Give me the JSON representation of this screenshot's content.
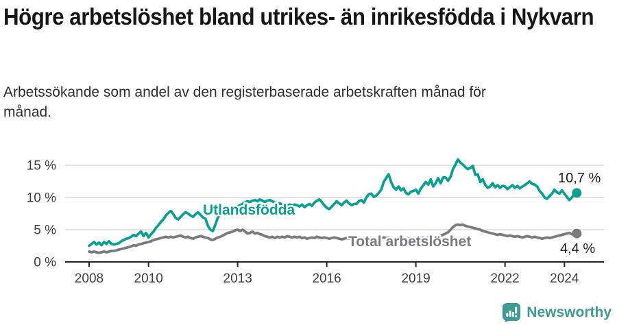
{
  "header": {
    "title": "Högre arbetslöshet bland utrikes- än inrikesfödda i Nykvarn",
    "subtitle": "Arbetssökande som andel av den registerbaserade arbetskraften månad för månad."
  },
  "chart_data": {
    "type": "line",
    "title": "Högre arbetslöshet bland utrikes- än inrikesfödda i Nykvarn",
    "subtitle": "Arbetssökande som andel av den registerbaserade arbetskraften månad för månad.",
    "x_start_year": 2008,
    "points_per_month": 1,
    "x_ticks": [
      2008,
      2010,
      2013,
      2016,
      2019,
      2022,
      2024
    ],
    "y_ticks": [
      0,
      5,
      10,
      15
    ],
    "y_tick_labels": [
      "0 %",
      "5 %",
      "10 %",
      "15 %"
    ],
    "ylim": [
      0,
      16.5
    ],
    "grid": "horizontal",
    "legend_position": "inline-labels",
    "colors": {
      "utlandsfodda": "#0aa092",
      "total": "#7b7a7f",
      "gridline": "#d9d9d9",
      "axis": "#222222",
      "end_label_text": "#1a1a1a"
    },
    "series": [
      {
        "name": "Utlandsfödda",
        "color": "#0aa092",
        "end_label": "10,7 %",
        "end_value": 10.7,
        "values": [
          2.5,
          2.8,
          3.1,
          2.7,
          3.0,
          2.6,
          3.1,
          2.8,
          3.2,
          2.8,
          2.7,
          2.8,
          2.9,
          3.2,
          3.4,
          3.6,
          3.7,
          3.9,
          4.2,
          4.0,
          4.4,
          4.7,
          4.0,
          4.5,
          3.8,
          4.3,
          4.7,
          5.3,
          5.7,
          6.2,
          6.6,
          7.2,
          7.6,
          7.9,
          7.4,
          6.8,
          6.6,
          7.0,
          7.4,
          7.7,
          7.5,
          7.2,
          7.0,
          7.4,
          7.7,
          7.3,
          6.9,
          6.7,
          5.6,
          5.0,
          4.8,
          5.8,
          6.9,
          7.3,
          7.5,
          7.7,
          7.9,
          8.1,
          8.2,
          8.4,
          8.6,
          8.8,
          9.0,
          9.2,
          9.4,
          9.3,
          9.5,
          9.6,
          9.4,
          9.7,
          9.5,
          9.3,
          9.5,
          9.6,
          9.4,
          9.2,
          9.0,
          9.1,
          8.9,
          9.0,
          8.8,
          8.9,
          8.7,
          8.9,
          8.8,
          8.6,
          8.9,
          8.5,
          8.8,
          9.0,
          8.7,
          9.2,
          9.5,
          9.7,
          9.3,
          8.8,
          8.4,
          8.2,
          8.6,
          9.0,
          9.4,
          9.1,
          8.8,
          9.2,
          9.5,
          9.1,
          8.8,
          9.0,
          9.0,
          9.4,
          9.6,
          9.2,
          10.0,
          10.5,
          10.6,
          10.1,
          10.3,
          10.7,
          11.2,
          12.4,
          13.0,
          13.6,
          12.4,
          11.6,
          11.2,
          11.7,
          11.1,
          11.4,
          10.7,
          10.5,
          10.9,
          11.0,
          11.2,
          10.6,
          11.4,
          11.9,
          12.4,
          12.0,
          12.8,
          11.7,
          12.2,
          13.0,
          12.2,
          13.1,
          13.1,
          12.6,
          13.2,
          14.4,
          15.1,
          15.9,
          15.4,
          15.1,
          14.7,
          14.4,
          14.6,
          14.9,
          13.5,
          13.6,
          12.4,
          12.8,
          12.0,
          11.5,
          11.7,
          12.2,
          11.6,
          11.9,
          11.5,
          11.8,
          11.7,
          11.3,
          11.6,
          11.9,
          11.5,
          11.8,
          11.4,
          11.7,
          11.9,
          12.2,
          12.5,
          12.1,
          12.0,
          11.7,
          11.0,
          10.6,
          10.0,
          9.8,
          10.2,
          10.6,
          11.2,
          10.8,
          10.6,
          11.1,
          10.6,
          10.1,
          9.6,
          10.0,
          10.5,
          10.7
        ]
      },
      {
        "name": "Total arbetslöshet",
        "color": "#7b7a7f",
        "end_label": "4,4 %",
        "end_value": 4.4,
        "values": [
          1.6,
          1.5,
          1.6,
          1.5,
          1.4,
          1.5,
          1.6,
          1.5,
          1.6,
          1.7,
          1.7,
          1.8,
          1.9,
          2.0,
          2.1,
          2.2,
          2.3,
          2.4,
          2.6,
          2.5,
          2.7,
          2.8,
          2.9,
          3.0,
          3.1,
          3.2,
          3.4,
          3.5,
          3.6,
          3.7,
          3.8,
          3.9,
          3.8,
          3.9,
          3.8,
          3.9,
          4.0,
          4.1,
          3.9,
          3.8,
          3.9,
          3.7,
          3.6,
          3.8,
          3.9,
          4.0,
          3.9,
          3.8,
          3.7,
          3.5,
          3.4,
          3.6,
          3.8,
          3.9,
          4.1,
          4.3,
          4.5,
          4.6,
          4.7,
          4.9,
          5.0,
          4.8,
          5.0,
          4.7,
          4.4,
          4.5,
          4.7,
          4.4,
          4.5,
          4.3,
          4.2,
          4.0,
          3.9,
          3.8,
          3.9,
          3.7,
          3.9,
          3.8,
          3.9,
          3.8,
          4.0,
          3.9,
          3.8,
          3.9,
          3.8,
          3.9,
          3.7,
          3.8,
          3.6,
          3.7,
          3.8,
          3.7,
          3.9,
          3.8,
          3.7,
          3.8,
          3.7,
          3.6,
          3.7,
          3.8,
          3.7,
          3.6,
          3.5,
          3.6,
          3.7,
          3.6,
          3.7,
          3.6,
          3.5,
          3.6,
          3.7,
          3.6,
          3.5,
          3.6,
          3.7,
          3.6,
          3.5,
          3.6,
          3.7,
          3.8,
          3.7,
          3.8,
          3.7,
          3.6,
          3.7,
          3.6,
          3.5,
          3.6,
          3.5,
          3.6,
          3.7,
          3.6,
          3.7,
          3.6,
          3.7,
          3.8,
          3.7,
          3.8,
          3.9,
          3.8,
          3.9,
          4.0,
          4.1,
          4.2,
          4.4,
          4.6,
          5.0,
          5.4,
          5.7,
          5.8,
          5.7,
          5.8,
          5.6,
          5.5,
          5.4,
          5.3,
          5.2,
          5.1,
          5.0,
          4.8,
          4.7,
          4.6,
          4.5,
          4.4,
          4.3,
          4.2,
          4.3,
          4.2,
          4.1,
          4.0,
          4.1,
          4.0,
          3.9,
          4.0,
          3.9,
          3.8,
          3.9,
          4.0,
          3.9,
          3.8,
          3.9,
          3.8,
          3.7,
          3.6,
          3.7,
          3.8,
          3.7,
          3.8,
          3.9,
          4.0,
          4.1,
          4.2,
          4.3,
          4.4,
          4.5,
          4.3,
          4.2,
          4.4
        ]
      }
    ]
  },
  "footer": {
    "brand": "Newsworthy",
    "brand_color": "#3f9c95"
  }
}
